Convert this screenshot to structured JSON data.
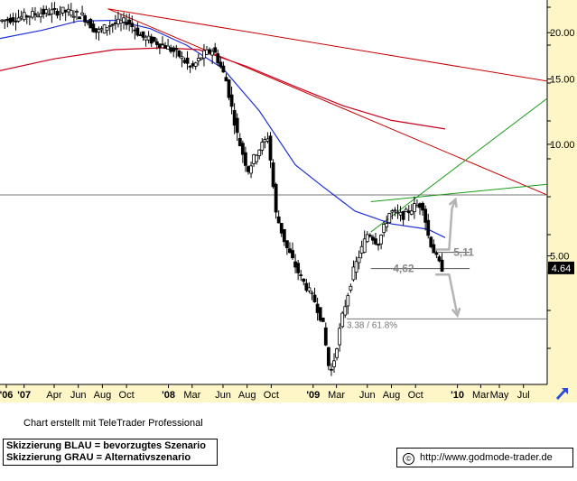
{
  "chart_data": {
    "type": "candlestick",
    "title": "",
    "price_scale": "log",
    "ylim": [
      2.25,
      24.5
    ],
    "x_range": [
      "2006-11-15",
      "2010-08-30"
    ],
    "y_ticks": [
      {
        "value": 20,
        "label": "20.00"
      },
      {
        "value": 15,
        "label": "15.00"
      },
      {
        "value": 10,
        "label": "10.00"
      },
      {
        "value": 5,
        "label": "5.00"
      }
    ],
    "x_ticks": [
      {
        "date": "2006-12-01",
        "label": "'06"
      },
      {
        "date": "2007-01-15",
        "label": "'07"
      },
      {
        "date": "2007-04-01",
        "label": "Apr"
      },
      {
        "date": "2007-06-01",
        "label": "Jun"
      },
      {
        "date": "2007-08-01",
        "label": "Aug"
      },
      {
        "date": "2007-10-01",
        "label": "Oct"
      },
      {
        "date": "2008-01-15",
        "label": "'08"
      },
      {
        "date": "2008-03-15",
        "label": "Mar"
      },
      {
        "date": "2008-06-01",
        "label": "Jun"
      },
      {
        "date": "2008-08-01",
        "label": "Aug"
      },
      {
        "date": "2008-10-01",
        "label": "Oct"
      },
      {
        "date": "2009-01-15",
        "label": "'09"
      },
      {
        "date": "2009-03-15",
        "label": "Mar"
      },
      {
        "date": "2009-06-01",
        "label": "Jun"
      },
      {
        "date": "2009-08-01",
        "label": "Aug"
      },
      {
        "date": "2009-10-01",
        "label": "Oct"
      },
      {
        "date": "2010-01-15",
        "label": "'10"
      },
      {
        "date": "2010-03-15",
        "label": "Mar"
      },
      {
        "date": "2010-05-01",
        "label": "May"
      },
      {
        "date": "2010-07-01",
        "label": "Jul"
      }
    ],
    "last_price": {
      "value": 4.64,
      "label": "4.64"
    },
    "price_keypoints": [
      [
        "2006-11-20",
        21.5
      ],
      [
        "2007-01-10",
        22.0
      ],
      [
        "2007-03-01",
        22.6
      ],
      [
        "2007-05-01",
        22.9
      ],
      [
        "2007-06-20",
        22.2
      ],
      [
        "2007-07-25",
        20.0
      ],
      [
        "2007-08-25",
        21.0
      ],
      [
        "2007-10-10",
        21.5
      ],
      [
        "2007-11-15",
        19.5
      ],
      [
        "2008-01-10",
        18.5
      ],
      [
        "2008-02-15",
        17.5
      ],
      [
        "2008-03-20",
        16.0
      ],
      [
        "2008-04-20",
        17.5
      ],
      [
        "2008-05-15",
        18.0
      ],
      [
        "2008-06-15",
        15.0
      ],
      [
        "2008-07-15",
        10.5
      ],
      [
        "2008-08-10",
        8.5
      ],
      [
        "2008-09-01",
        9.5
      ],
      [
        "2008-09-30",
        10.5
      ],
      [
        "2008-10-20",
        6.5
      ],
      [
        "2008-11-15",
        5.3
      ],
      [
        "2008-12-20",
        4.4
      ],
      [
        "2009-01-25",
        3.8
      ],
      [
        "2009-02-15",
        3.3
      ],
      [
        "2009-03-05",
        2.4
      ],
      [
        "2009-03-12",
        2.5
      ],
      [
        "2009-04-05",
        3.4
      ],
      [
        "2009-05-05",
        4.6
      ],
      [
        "2009-06-10",
        5.8
      ],
      [
        "2009-07-05",
        5.4
      ],
      [
        "2009-08-05",
        6.6
      ],
      [
        "2009-09-05",
        6.4
      ],
      [
        "2009-10-05",
        6.8
      ],
      [
        "2009-10-25",
        6.9
      ],
      [
        "2009-11-10",
        5.6
      ],
      [
        "2009-12-01",
        4.9
      ],
      [
        "2009-12-12",
        4.64
      ]
    ],
    "series": [
      {
        "color": "#1f2fd6",
        "points": [
          [
            "2006-11-15",
            19.3
          ],
          [
            "2007-03-01",
            20.3
          ],
          [
            "2007-06-01",
            21.5
          ],
          [
            "2007-09-01",
            21.6
          ],
          [
            "2007-12-01",
            20.5
          ],
          [
            "2008-03-01",
            18.5
          ],
          [
            "2008-06-01",
            16.0
          ],
          [
            "2008-09-01",
            12.3
          ],
          [
            "2008-12-01",
            8.8
          ],
          [
            "2009-02-01",
            7.8
          ],
          [
            "2009-05-01",
            6.6
          ],
          [
            "2009-08-01",
            6.1
          ],
          [
            "2009-11-01",
            5.9
          ],
          [
            "2009-12-15",
            5.6
          ]
        ]
      },
      {
        "color": "#c8001e",
        "points": [
          [
            "2006-11-15",
            15.8
          ],
          [
            "2007-04-01",
            17.0
          ],
          [
            "2007-09-01",
            18.0
          ],
          [
            "2008-01-01",
            18.2
          ],
          [
            "2008-04-01",
            18.0
          ],
          [
            "2008-08-01",
            16.2
          ],
          [
            "2008-12-01",
            14.3
          ],
          [
            "2009-04-01",
            12.7
          ],
          [
            "2009-08-01",
            11.6
          ],
          [
            "2009-12-15",
            11.0
          ]
        ]
      }
    ],
    "trendlines": [
      {
        "kind": "resistance",
        "color": "#c80000",
        "from": [
          "2007-08-15",
          23.2
        ],
        "to": [
          "2010-08-30",
          14.8
        ]
      },
      {
        "kind": "resistance",
        "color": "#c80000",
        "from": [
          "2007-08-15",
          23.2
        ],
        "to": [
          "2010-08-30",
          7.3
        ]
      },
      {
        "kind": "horizontal",
        "color": "#777777",
        "value": 7.3
      },
      {
        "kind": "trend",
        "color": "#1a9a1a",
        "from": [
          "2009-06-10",
          5.8
        ],
        "to": [
          "2010-08-30",
          13.3
        ]
      },
      {
        "kind": "trend",
        "color": "#1a9a1a",
        "from": [
          "2009-06-10",
          7.0
        ],
        "to": [
          "2010-08-30",
          7.8
        ]
      },
      {
        "kind": "level",
        "color": "#555555",
        "from": [
          "2009-06-10",
          4.62
        ],
        "to": [
          "2010-02-15",
          4.62
        ]
      },
      {
        "kind": "level",
        "color": "#555555",
        "from": [
          "2009-11-20",
          5.11
        ],
        "to": [
          "2010-02-15",
          5.11
        ]
      },
      {
        "kind": "level",
        "color": "#777777",
        "from": [
          "2009-04-10",
          3.38
        ],
        "to": [
          "2010-08-30",
          3.38
        ]
      }
    ],
    "annotations": [
      {
        "text": "5,11",
        "date": "2010-01-05",
        "value": 5.11
      },
      {
        "text": "4,62",
        "date": "2009-08-05",
        "value": 4.62
      },
      {
        "text": "3.38 / 61.8%",
        "date": "2009-04-10",
        "value": 3.38
      }
    ],
    "scenario_arrows": [
      {
        "kind": "alternative-up",
        "color": "#b4b4b4",
        "points": [
          [
            "2009-11-20",
            5.2
          ],
          [
            "2009-12-25",
            5.2
          ],
          [
            "2010-01-01",
            6.7
          ],
          [
            "2010-01-10",
            7.1
          ]
        ]
      },
      {
        "kind": "alternative-down",
        "color": "#b4b4b4",
        "points": [
          [
            "2009-11-20",
            4.45
          ],
          [
            "2009-12-25",
            4.45
          ],
          [
            "2010-01-15",
            3.45
          ]
        ]
      }
    ]
  },
  "footer": {
    "credit": "Chart erstellt mit TeleTrader Professional",
    "legend_blue": "Skizzierung BLAU = bevorzugtes Szenario",
    "legend_grey": "Skizzierung GRAU = Alternativszenario",
    "copyright_symbol": "©",
    "url": "http://www.godmode-trader.de"
  },
  "colors": {
    "background": "#ffffff",
    "axis_panel": "#fff6c8",
    "candle": "#000000",
    "moving_average_fast": "#1f2fd6",
    "moving_average_slow": "#c8001e",
    "last_price_badge": "#000000"
  }
}
